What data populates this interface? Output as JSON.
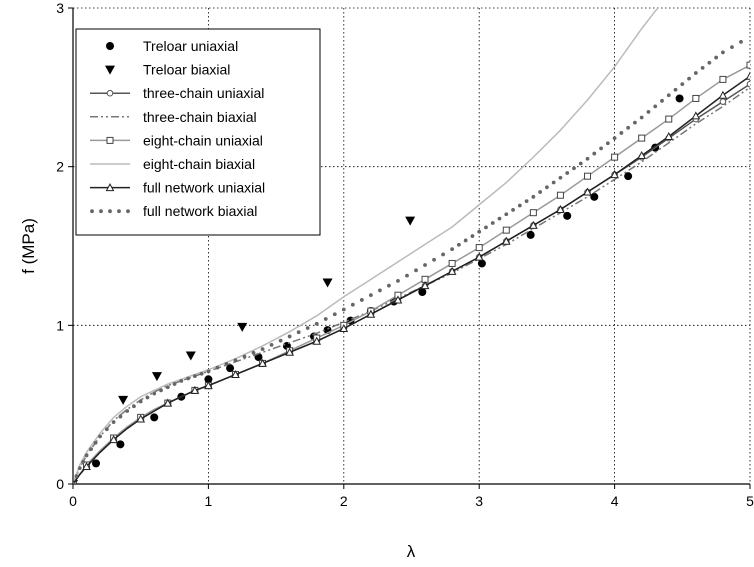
{
  "chart_data": {
    "type": "scatter",
    "xlabel": "λ",
    "ylabel": "f (MPa)",
    "xlim": [
      0,
      5
    ],
    "ylim": [
      0,
      3
    ],
    "xticks": [
      "0",
      "1",
      "2",
      "3",
      "4",
      "5"
    ],
    "yticks": [
      "0",
      "1",
      "2",
      "3"
    ],
    "grid": "dotted",
    "legend_position": "top-left",
    "series": [
      {
        "name": "Treloar uniaxial",
        "style": "marker",
        "marker": "circle-filled",
        "color": "#000000",
        "x": [
          0,
          0.17,
          0.35,
          0.6,
          0.8,
          1.0,
          1.16,
          1.37,
          1.58,
          1.78,
          1.88,
          2.05,
          2.2,
          2.37,
          2.58,
          3.02,
          3.38,
          3.65,
          3.85,
          4.1,
          4.3,
          4.48
        ],
        "y": [
          0,
          0.13,
          0.25,
          0.42,
          0.55,
          0.66,
          0.73,
          0.8,
          0.87,
          0.93,
          0.97,
          1.03,
          1.09,
          1.15,
          1.21,
          1.39,
          1.57,
          1.69,
          1.81,
          1.94,
          2.12,
          2.43
        ]
      },
      {
        "name": "Treloar biaxial",
        "style": "marker",
        "marker": "triangle-down-filled",
        "color": "#000000",
        "x": [
          0,
          0.37,
          0.62,
          0.87,
          1.25,
          1.88,
          2.49
        ],
        "y": [
          0,
          0.53,
          0.68,
          0.81,
          0.99,
          1.27,
          1.66
        ]
      },
      {
        "name": "three-chain uniaxial",
        "style": "line-marker",
        "marker": "circle-open",
        "color": "#555555",
        "x": [
          0,
          0.05,
          0.1,
          0.2,
          0.3,
          0.4,
          0.5,
          0.6,
          0.7,
          0.8,
          0.9,
          1.0,
          1.2,
          1.4,
          1.6,
          1.8,
          2.0,
          2.2,
          2.4,
          2.6,
          2.8,
          3.0,
          3.2,
          3.4,
          3.6,
          3.8,
          4.0,
          4.2,
          4.4,
          4.6,
          4.8,
          5.0
        ],
        "y": [
          0,
          0.06,
          0.11,
          0.2,
          0.28,
          0.35,
          0.41,
          0.46,
          0.51,
          0.55,
          0.59,
          0.62,
          0.69,
          0.76,
          0.83,
          0.9,
          0.98,
          1.07,
          1.16,
          1.25,
          1.34,
          1.43,
          1.53,
          1.63,
          1.73,
          1.84,
          1.95,
          2.06,
          2.18,
          2.3,
          2.41,
          2.52
        ]
      },
      {
        "name": "three-chain biaxial",
        "style": "line",
        "dash": "dash-dot-dot",
        "color": "#777777",
        "x": [
          0,
          0.05,
          0.1,
          0.2,
          0.3,
          0.4,
          0.5,
          0.6,
          0.7,
          0.8,
          0.9,
          1.0,
          1.2,
          1.4,
          1.6,
          1.8,
          2.0,
          2.2,
          2.4,
          2.6,
          2.8,
          3.0,
          3.2,
          3.4,
          3.6,
          3.8,
          4.0,
          4.2,
          4.4,
          4.6,
          4.8,
          5.0
        ],
        "y": [
          0,
          0.1,
          0.18,
          0.3,
          0.4,
          0.47,
          0.53,
          0.58,
          0.62,
          0.65,
          0.68,
          0.71,
          0.77,
          0.83,
          0.89,
          0.95,
          1.02,
          1.09,
          1.17,
          1.25,
          1.33,
          1.42,
          1.51,
          1.61,
          1.71,
          1.81,
          1.92,
          2.03,
          2.15,
          2.27,
          2.38,
          2.5
        ]
      },
      {
        "name": "eight-chain uniaxial",
        "style": "line-marker",
        "marker": "square-open",
        "color": "#999999",
        "x": [
          0,
          0.05,
          0.1,
          0.2,
          0.3,
          0.4,
          0.5,
          0.6,
          0.7,
          0.8,
          0.9,
          1.0,
          1.2,
          1.4,
          1.6,
          1.8,
          2.0,
          2.2,
          2.4,
          2.6,
          2.8,
          3.0,
          3.2,
          3.4,
          3.6,
          3.8,
          4.0,
          4.2,
          4.4,
          4.6,
          4.8,
          5.0
        ],
        "y": [
          0,
          0.06,
          0.12,
          0.21,
          0.29,
          0.36,
          0.42,
          0.47,
          0.51,
          0.55,
          0.59,
          0.62,
          0.69,
          0.76,
          0.84,
          0.92,
          1.0,
          1.09,
          1.19,
          1.29,
          1.39,
          1.49,
          1.6,
          1.71,
          1.82,
          1.94,
          2.06,
          2.18,
          2.3,
          2.43,
          2.55,
          2.64
        ]
      },
      {
        "name": "eight-chain biaxial",
        "style": "line",
        "color": "#bbbbbb",
        "x": [
          0,
          0.05,
          0.1,
          0.2,
          0.3,
          0.4,
          0.5,
          0.6,
          0.7,
          0.8,
          0.9,
          1.0,
          1.2,
          1.4,
          1.6,
          1.8,
          2.0,
          2.2,
          2.4,
          2.6,
          2.8,
          3.0,
          3.2,
          3.4,
          3.6,
          3.8,
          4.0,
          4.1,
          4.2,
          4.3,
          4.32
        ],
        "y": [
          0,
          0.12,
          0.2,
          0.32,
          0.42,
          0.49,
          0.55,
          0.59,
          0.63,
          0.66,
          0.69,
          0.72,
          0.79,
          0.87,
          0.96,
          1.06,
          1.18,
          1.29,
          1.4,
          1.51,
          1.62,
          1.76,
          1.9,
          2.06,
          2.23,
          2.42,
          2.63,
          2.75,
          2.87,
          2.98,
          3.0
        ]
      },
      {
        "name": "full network uniaxial",
        "style": "line-marker",
        "marker": "triangle-open",
        "color": "#222222",
        "x": [
          0,
          0.05,
          0.1,
          0.2,
          0.3,
          0.4,
          0.5,
          0.6,
          0.7,
          0.8,
          0.9,
          1.0,
          1.2,
          1.4,
          1.6,
          1.8,
          2.0,
          2.2,
          2.4,
          2.6,
          2.8,
          3.0,
          3.2,
          3.4,
          3.6,
          3.8,
          4.0,
          4.2,
          4.4,
          4.6,
          4.8,
          5.0
        ],
        "y": [
          0,
          0.06,
          0.11,
          0.2,
          0.28,
          0.35,
          0.41,
          0.46,
          0.51,
          0.55,
          0.59,
          0.62,
          0.69,
          0.76,
          0.83,
          0.9,
          0.98,
          1.07,
          1.16,
          1.25,
          1.34,
          1.43,
          1.53,
          1.63,
          1.73,
          1.84,
          1.95,
          2.07,
          2.19,
          2.32,
          2.45,
          2.57
        ]
      },
      {
        "name": "full network biaxial",
        "style": "dots",
        "color": "#666666",
        "x": [
          0,
          0.05,
          0.1,
          0.2,
          0.3,
          0.4,
          0.5,
          0.6,
          0.7,
          0.8,
          0.9,
          1.0,
          1.2,
          1.4,
          1.6,
          1.8,
          2.0,
          2.2,
          2.4,
          2.6,
          2.8,
          3.0,
          3.2,
          3.4,
          3.6,
          3.8,
          4.0,
          4.2,
          4.4,
          4.6,
          4.8,
          5.0
        ],
        "y": [
          0,
          0.1,
          0.18,
          0.3,
          0.39,
          0.46,
          0.52,
          0.57,
          0.61,
          0.65,
          0.68,
          0.71,
          0.78,
          0.85,
          0.93,
          1.01,
          1.1,
          1.19,
          1.28,
          1.38,
          1.48,
          1.59,
          1.7,
          1.81,
          1.93,
          2.05,
          2.18,
          2.31,
          2.45,
          2.59,
          2.72,
          2.82
        ]
      }
    ]
  }
}
